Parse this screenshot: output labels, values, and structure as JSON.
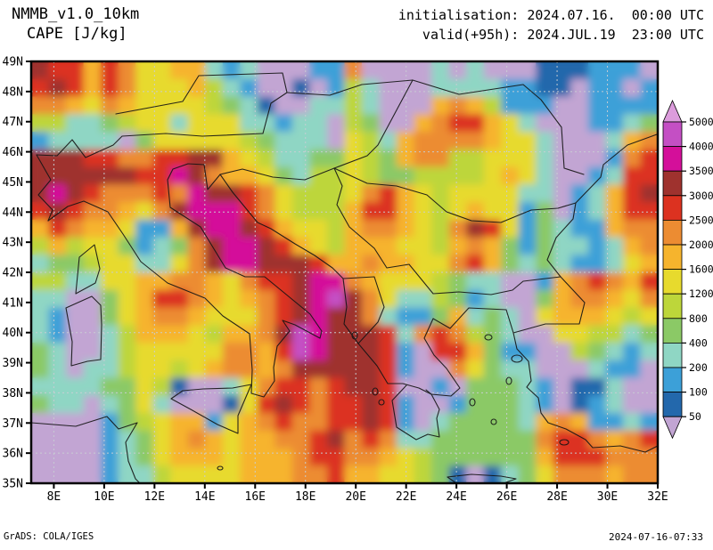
{
  "header": {
    "model": "NMMB_v1.0_10km",
    "variable": "CAPE [J/kg]",
    "init_line": "initialisation: 2024.07.16.  00:00 UTC",
    "valid_line": "valid(+95h): 2024.JUL.19  23:00 UTC"
  },
  "footer": {
    "left": "GrADS: COLA/IGES",
    "right": "2024-07-16-07:33"
  },
  "axes": {
    "lat_tick_values": [
      49,
      48,
      47,
      46,
      45,
      44,
      43,
      42,
      41,
      40,
      39,
      38,
      37,
      36,
      35
    ],
    "lat_tick_labels": [
      "49N",
      "48N",
      "47N",
      "46N",
      "45N",
      "44N",
      "43N",
      "42N",
      "41N",
      "40N",
      "39N",
      "38N",
      "37N",
      "36N",
      "35N"
    ],
    "lon_tick_values": [
      8,
      10,
      12,
      14,
      16,
      18,
      20,
      22,
      24,
      26,
      28,
      30,
      32
    ],
    "lon_tick_labels": [
      "8E",
      "10E",
      "12E",
      "14E",
      "16E",
      "18E",
      "20E",
      "22E",
      "24E",
      "26E",
      "28E",
      "30E",
      "32E"
    ],
    "grid_lat_values": [
      48,
      46,
      44,
      42,
      40,
      38,
      36
    ],
    "grid_lon_values": [
      8,
      10,
      12,
      14,
      16,
      18,
      20,
      22,
      24,
      26,
      28,
      30
    ],
    "gridline_color": "#c9ced4"
  },
  "colorbar": {
    "labels": [
      "5000",
      "4000",
      "3500",
      "3000",
      "2500",
      "2000",
      "1600",
      "1200",
      "800",
      "400",
      "200",
      "100",
      "50"
    ],
    "values": [
      5000,
      4000,
      3500,
      3000,
      2500,
      2000,
      1600,
      1200,
      800,
      400,
      200,
      100,
      50
    ],
    "band_colors_top_to_bottom": [
      "#c44fc4",
      "#d40f9a",
      "#9f322e",
      "#dc3220",
      "#ec8c32",
      "#f6b42d",
      "#e7da2d",
      "#bdd63a",
      "#8bc966",
      "#8fd6c4",
      "#3ca0d8",
      "#2368ac"
    ],
    "over_color": "#dc9cdc",
    "under_color": "#c2a5d3"
  },
  "chart_data": {
    "type": "heatmap",
    "title": "CAPE [J/kg]",
    "model": "NMMB_v1.0_10km",
    "units": "J/kg",
    "lon_range": [
      7.1,
      32.0
    ],
    "lat_range": [
      35.0,
      49.0
    ],
    "levels": [
      50,
      100,
      200,
      400,
      800,
      1200,
      1600,
      2000,
      2500,
      3000,
      3500,
      4000,
      5000
    ],
    "palette": {
      "0": "#c2a5d3",
      "1": "#2368ac",
      "2": "#3ca0d8",
      "3": "#8fd6c4",
      "4": "#8bc966",
      "5": "#bdd63a",
      "6": "#e7da2d",
      "7": "#f6b42d",
      "8": "#ec8c32",
      "9": "#dc3220",
      "A": "#9f322e",
      "B": "#d40f9a",
      "C": "#c44fc4",
      "D": "#dc9cdc"
    },
    "palette_ranges": {
      "0": "<50",
      "1": "50-100",
      "2": "100-200",
      "3": "200-400",
      "4": "400-800",
      "5": "800-1200",
      "6": "1200-1600",
      "7": "1600-2000",
      "8": "2000-2500",
      "9": "2500-3000",
      "A": "3000-3500",
      "B": "3500-4000",
      "C": "4000-5000",
      "D": ">5000"
    },
    "grid_rows_lat_49N_to_35N": [
      "A99798667732300022800003030001112220",
      "9A9798666753200102530003333221102202",
      "887687666654310033530007875222002222",
      "553345663666332330540078997630002234",
      "233330466666543330653788887663000378",
      "AAA998899AA7653344654788556663000289",
      "AAAAAA99BA87764355654455556763002399",
      "ABA988898BAA98655568976566663302379A",
      "9A988768ABBB986555799765676624023799",
      "798776227ABBA976657887658A9624322788",
      "5756642348ABBA9765777665787424332378",
      "3445663368ABBAAA97787766897434322367",
      "553366778876899ABB876665433002789879",
      "330046799876789ABCA86335423004788768",
      "320046788766689ABAA83224734306777656",
      "32003577765778ACBAAA9389854300665534",
      "430035666668879CBAAA9209974220054323",
      "430335665678878AAAAA9200864330003220",
      "333344651003689989AA9002044432011300",
      "43303463000169A9899A9200244432012300",
      "0000245677267898899A9203444437872232",
      "00002346787677889A898334444448998789",
      "000023467776777899887654444447999888",
      "000023356666777889776654101346888788"
    ]
  }
}
